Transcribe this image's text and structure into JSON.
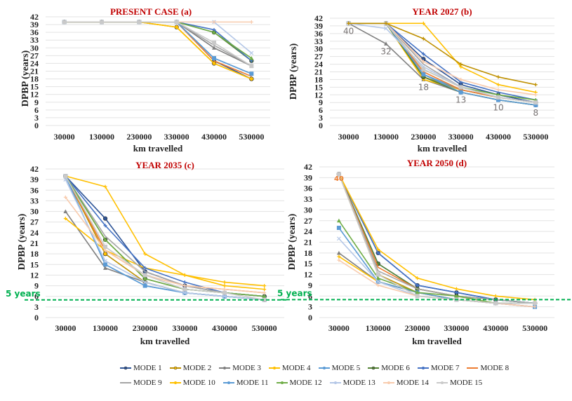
{
  "modes": [
    {
      "name": "MODE 1",
      "color": "#2F5597",
      "marker": "circle"
    },
    {
      "name": "MODE 2",
      "color": "#BF9000",
      "marker": "circle-yellow"
    },
    {
      "name": "MODE 3",
      "color": "#7F7F7F",
      "marker": "triangle"
    },
    {
      "name": "MODE 4",
      "color": "#FFC000",
      "marker": "cross"
    },
    {
      "name": "MODE 5",
      "color": "#5B9BD5",
      "marker": "x"
    },
    {
      "name": "MODE 6",
      "color": "#548235",
      "marker": "circle"
    },
    {
      "name": "MODE 7",
      "color": "#4472C4",
      "marker": "plus"
    },
    {
      "name": "MODE 8",
      "color": "#ED7D31",
      "marker": "none"
    },
    {
      "name": "MODE 9",
      "color": "#A5A5A5",
      "marker": "none"
    },
    {
      "name": "MODE 10",
      "color": "#FFC000",
      "marker": "star"
    },
    {
      "name": "MODE 11",
      "color": "#5B9BD5",
      "marker": "square"
    },
    {
      "name": "MODE 12",
      "color": "#70AD47",
      "marker": "triangle"
    },
    {
      "name": "MODE 13",
      "color": "#B4C7E7",
      "marker": "x"
    },
    {
      "name": "MODE 14",
      "color": "#F8CBAD",
      "marker": "cross"
    },
    {
      "name": "MODE 15",
      "color": "#C9C9C9",
      "marker": "square"
    }
  ],
  "threshold_label": "5 years",
  "threshold_color": "#00B050",
  "chart_data": [
    {
      "type": "line",
      "title": "PRESENT CASE (a)",
      "xlabel": "km travelled",
      "ylabel": "DPBP (years)",
      "categories": [
        "30000",
        "130000",
        "230000",
        "330000",
        "430000",
        "530000"
      ],
      "ylim": [
        0,
        42
      ],
      "yticks": [
        0,
        3,
        6,
        9,
        12,
        15,
        18,
        21,
        24,
        27,
        30,
        33,
        36,
        39,
        42
      ],
      "grid": true,
      "threshold": null,
      "annotations": [],
      "series": [
        {
          "name": "MODE 1",
          "values": [
            40,
            40,
            40,
            40,
            25,
            18
          ]
        },
        {
          "name": "MODE 2",
          "values": [
            40,
            40,
            40,
            38,
            24,
            18
          ]
        },
        {
          "name": "MODE 3",
          "values": [
            40,
            40,
            40,
            40,
            30,
            23
          ]
        },
        {
          "name": "MODE 4",
          "values": [
            40,
            40,
            40,
            38,
            24,
            18
          ]
        },
        {
          "name": "MODE 5",
          "values": [
            40,
            40,
            40,
            40,
            26,
            20
          ]
        },
        {
          "name": "MODE 6",
          "values": [
            40,
            40,
            40,
            40,
            36,
            25
          ]
        },
        {
          "name": "MODE 7",
          "values": [
            40,
            40,
            40,
            40,
            37,
            25
          ]
        },
        {
          "name": "MODE 8",
          "values": [
            40,
            40,
            40,
            40,
            25,
            19
          ]
        },
        {
          "name": "MODE 9",
          "values": [
            40,
            40,
            40,
            40,
            31,
            23
          ]
        },
        {
          "name": "MODE 10",
          "values": [
            40,
            40,
            40,
            38,
            24,
            18
          ]
        },
        {
          "name": "MODE 11",
          "values": [
            40,
            40,
            40,
            40,
            26,
            20
          ]
        },
        {
          "name": "MODE 12",
          "values": [
            40,
            40,
            40,
            40,
            36,
            26
          ]
        },
        {
          "name": "MODE 13",
          "values": [
            40,
            40,
            40,
            40,
            40,
            28
          ]
        },
        {
          "name": "MODE 14",
          "values": [
            40,
            40,
            40,
            40,
            40,
            40
          ]
        },
        {
          "name": "MODE 15",
          "values": [
            40,
            40,
            40,
            40,
            32,
            23
          ]
        }
      ]
    },
    {
      "type": "line",
      "title": "YEAR 2027 (b)",
      "xlabel": "km travelled",
      "ylabel": "DPBP (years)",
      "categories": [
        "30000",
        "130000",
        "230000",
        "330000",
        "430000",
        "530000"
      ],
      "ylim": [
        0,
        42
      ],
      "yticks": [
        0,
        3,
        6,
        9,
        12,
        15,
        18,
        21,
        24,
        27,
        30,
        33,
        36,
        39,
        42
      ],
      "grid": true,
      "threshold": null,
      "annotations": [
        {
          "x": 0,
          "y": 40,
          "text": "40"
        },
        {
          "x": 1,
          "y": 32,
          "text": "32"
        },
        {
          "x": 2,
          "y": 18,
          "text": "18"
        },
        {
          "x": 3,
          "y": 13,
          "text": "13"
        },
        {
          "x": 4,
          "y": 10,
          "text": "10"
        },
        {
          "x": 5,
          "y": 8,
          "text": "8"
        }
      ],
      "series": [
        {
          "name": "MODE 1",
          "values": [
            40,
            40,
            26,
            16,
            12,
            9
          ]
        },
        {
          "name": "MODE 2",
          "values": [
            40,
            40,
            19,
            14,
            11,
            9
          ]
        },
        {
          "name": "MODE 3",
          "values": [
            40,
            32,
            18,
            13,
            10,
            8
          ]
        },
        {
          "name": "MODE 4",
          "values": [
            40,
            40,
            18,
            14,
            11,
            9
          ]
        },
        {
          "name": "MODE 5",
          "values": [
            40,
            40,
            20,
            14,
            11,
            9
          ]
        },
        {
          "name": "MODE 6",
          "values": [
            40,
            40,
            19,
            13,
            10,
            8
          ]
        },
        {
          "name": "MODE 7",
          "values": [
            40,
            40,
            28,
            17,
            13,
            10
          ]
        },
        {
          "name": "MODE 8",
          "values": [
            40,
            40,
            21,
            14,
            11,
            9
          ]
        },
        {
          "name": "MODE 9",
          "values": [
            40,
            40,
            24,
            15,
            11,
            9
          ]
        },
        {
          "name": "MODE 10",
          "values": [
            40,
            40,
            40,
            23,
            16,
            13
          ]
        },
        {
          "name": "MODE 11",
          "values": [
            40,
            40,
            20,
            13,
            10,
            8
          ]
        },
        {
          "name": "MODE 12",
          "values": [
            40,
            40,
            22,
            15,
            12,
            10
          ]
        },
        {
          "name": "MODE 13",
          "values": [
            40,
            38,
            23,
            15,
            11,
            9
          ]
        },
        {
          "name": "MODE 14",
          "values": [
            40,
            40,
            25,
            18,
            14,
            12
          ]
        },
        {
          "name": "MODE 15",
          "values": [
            40,
            40,
            22,
            15,
            11,
            9
          ]
        },
        {
          "name": "MODE 2b",
          "values": [
            40,
            40,
            34,
            24,
            19,
            16
          ],
          "color": "#BF9000",
          "hidden_legend": true
        }
      ]
    },
    {
      "type": "line",
      "title": "YEAR 2035 (c)",
      "xlabel": "km travelled",
      "ylabel": "DPBP (years)",
      "categories": [
        "30000",
        "130000",
        "230000",
        "330000",
        "430000",
        "530000"
      ],
      "ylim": [
        0,
        42
      ],
      "yticks": [
        0,
        3,
        6,
        9,
        12,
        15,
        18,
        21,
        24,
        27,
        30,
        33,
        36,
        39,
        42
      ],
      "grid": true,
      "threshold": {
        "value": 5,
        "label": "5 years"
      },
      "annotations": [],
      "series": [
        {
          "name": "MODE 1",
          "values": [
            40,
            28,
            13,
            9,
            7,
            6
          ]
        },
        {
          "name": "MODE 2",
          "values": [
            40,
            18,
            10,
            7,
            6,
            5
          ]
        },
        {
          "name": "MODE 3",
          "values": [
            30,
            14,
            10,
            7,
            6,
            5
          ]
        },
        {
          "name": "MODE 4",
          "values": [
            28,
            19,
            14,
            12,
            10,
            9
          ]
        },
        {
          "name": "MODE 5",
          "values": [
            40,
            15,
            9,
            7,
            6,
            5
          ]
        },
        {
          "name": "MODE 6",
          "values": [
            40,
            22,
            11,
            8,
            7,
            6
          ]
        },
        {
          "name": "MODE 7",
          "values": [
            40,
            26,
            14,
            10,
            7,
            6
          ]
        },
        {
          "name": "MODE 8",
          "values": [
            40,
            19,
            12,
            9,
            8,
            7
          ]
        },
        {
          "name": "MODE 9",
          "values": [
            40,
            23,
            13,
            9,
            7,
            6
          ]
        },
        {
          "name": "MODE 10",
          "values": [
            40,
            37,
            18,
            12,
            9,
            8
          ]
        },
        {
          "name": "MODE 11",
          "values": [
            40,
            15,
            9,
            7,
            6,
            5
          ]
        },
        {
          "name": "MODE 12",
          "values": [
            40,
            22,
            11,
            8,
            7,
            6
          ]
        },
        {
          "name": "MODE 13",
          "values": [
            39,
            16,
            10,
            7,
            6,
            5
          ]
        },
        {
          "name": "MODE 14",
          "values": [
            34,
            19,
            12,
            9,
            8,
            7
          ]
        },
        {
          "name": "MODE 15",
          "values": [
            40,
            20,
            12,
            8,
            7,
            5
          ]
        }
      ]
    },
    {
      "type": "line",
      "title": "YEAR 2050 (d)",
      "xlabel": "km travelled",
      "ylabel": "DPBP (years)",
      "categories": [
        "30000",
        "130000",
        "230000",
        "330000",
        "430000",
        "530000"
      ],
      "ylim": [
        0,
        42
      ],
      "yticks": [
        0,
        3,
        6,
        9,
        12,
        15,
        18,
        21,
        24,
        27,
        30,
        33,
        36,
        39,
        42
      ],
      "grid": true,
      "threshold": {
        "value": 5,
        "label": "5 years"
      },
      "annotations": [
        {
          "x": 0,
          "y": 40,
          "text": "40",
          "color": "#ED7D31"
        }
      ],
      "series": [
        {
          "name": "MODE 1",
          "values": [
            40,
            18,
            9,
            7,
            5,
            4
          ]
        },
        {
          "name": "MODE 2",
          "values": [
            40,
            12,
            7,
            5,
            4,
            4
          ]
        },
        {
          "name": "MODE 3",
          "values": [
            18,
            10,
            7,
            5,
            4,
            4
          ]
        },
        {
          "name": "MODE 4",
          "values": [
            17,
            10,
            7,
            5,
            4,
            4
          ]
        },
        {
          "name": "MODE 5",
          "values": [
            40,
            15,
            8,
            6,
            5,
            4
          ]
        },
        {
          "name": "MODE 6",
          "values": [
            40,
            15,
            8,
            6,
            5,
            4
          ]
        },
        {
          "name": "MODE 7",
          "values": [
            40,
            18,
            9,
            7,
            5,
            4
          ]
        },
        {
          "name": "MODE 8",
          "values": [
            40,
            14,
            8,
            6,
            4,
            3
          ]
        },
        {
          "name": "MODE 9",
          "values": [
            40,
            13,
            8,
            6,
            5,
            4
          ]
        },
        {
          "name": "MODE 10",
          "values": [
            40,
            19,
            11,
            8,
            6,
            5
          ]
        },
        {
          "name": "MODE 11",
          "values": [
            25,
            10,
            7,
            5,
            4,
            3
          ]
        },
        {
          "name": "MODE 12",
          "values": [
            27,
            11,
            7,
            6,
            4,
            4
          ]
        },
        {
          "name": "MODE 13",
          "values": [
            22,
            10,
            6,
            5,
            4,
            4
          ]
        },
        {
          "name": "MODE 14",
          "values": [
            16,
            9,
            6,
            5,
            4,
            3
          ]
        },
        {
          "name": "MODE 15",
          "values": [
            40,
            12,
            6,
            5,
            4,
            4
          ]
        }
      ]
    }
  ],
  "legend": {
    "rows": [
      [
        "MODE 1",
        "MODE 2",
        "MODE 3",
        "MODE 4",
        "MODE 5",
        "MODE 6",
        "MODE 7",
        "MODE 8"
      ],
      [
        "MODE 9",
        "MODE 10",
        "MODE 11",
        "MODE 12",
        "MODE 13",
        "MODE 14",
        "MODE 15"
      ]
    ]
  }
}
